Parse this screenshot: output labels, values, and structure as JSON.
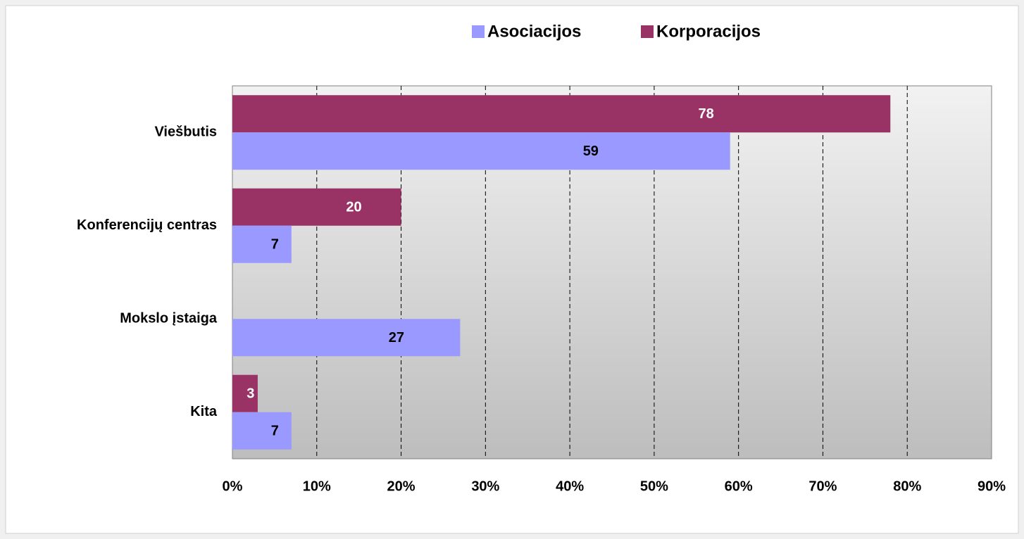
{
  "chart_data": {
    "type": "hbar",
    "categories": [
      "Viešbutis",
      "Konferencijų centras",
      "Mokslo įstaiga",
      "Kita"
    ],
    "series": [
      {
        "name": "Asociacijos",
        "color": "#9999ff",
        "label_color": "#000000",
        "values": [
          59,
          7,
          27,
          7
        ]
      },
      {
        "name": "Korporacijos",
        "color": "#993366",
        "label_color": "#ffffff",
        "values": [
          78,
          20,
          null,
          3
        ]
      }
    ],
    "xlim": [
      0,
      90
    ],
    "xticks": [
      {
        "value": 0,
        "label": "0%"
      },
      {
        "value": 10,
        "label": "10%"
      },
      {
        "value": 20,
        "label": "20%"
      },
      {
        "value": 30,
        "label": "30%"
      },
      {
        "value": 40,
        "label": "40%"
      },
      {
        "value": 50,
        "label": "50%"
      },
      {
        "value": 60,
        "label": "60%"
      },
      {
        "value": 70,
        "label": "70%"
      },
      {
        "value": 80,
        "label": "80%"
      },
      {
        "value": 90,
        "label": "90%"
      }
    ],
    "grid": true,
    "legend": "top"
  }
}
